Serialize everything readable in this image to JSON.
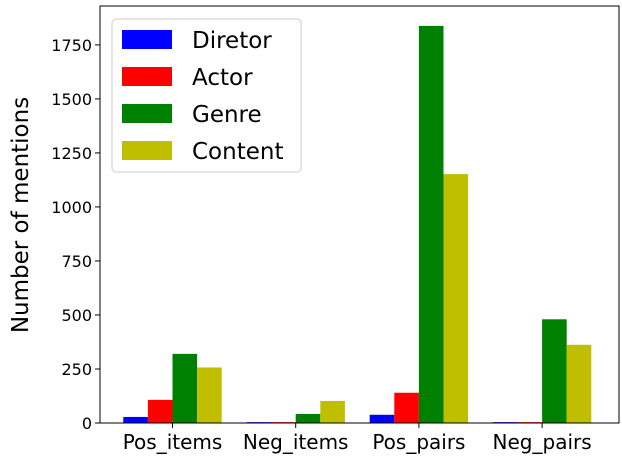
{
  "chart_data": {
    "type": "bar",
    "title": "",
    "xlabel": "",
    "ylabel": "Number of mentions",
    "categories": [
      "Pos_items",
      "Neg_items",
      "Pos_pairs",
      "Neg_pairs"
    ],
    "series": [
      {
        "name": "Diretor",
        "color": "#0000ff",
        "values": [
          28,
          4,
          38,
          4
        ]
      },
      {
        "name": "Actor",
        "color": "#ff0000",
        "values": [
          107,
          4,
          140,
          4
        ]
      },
      {
        "name": "Genre",
        "color": "#008000",
        "values": [
          320,
          42,
          1838,
          480
        ]
      },
      {
        "name": "Content",
        "color": "#bfbf00",
        "values": [
          257,
          102,
          1152,
          362
        ]
      }
    ],
    "yticks": [
      0,
      250,
      500,
      750,
      1000,
      1250,
      1500,
      1750
    ],
    "ylim": [
      0,
      1930
    ],
    "grid": false,
    "legend_position": "top-left"
  }
}
